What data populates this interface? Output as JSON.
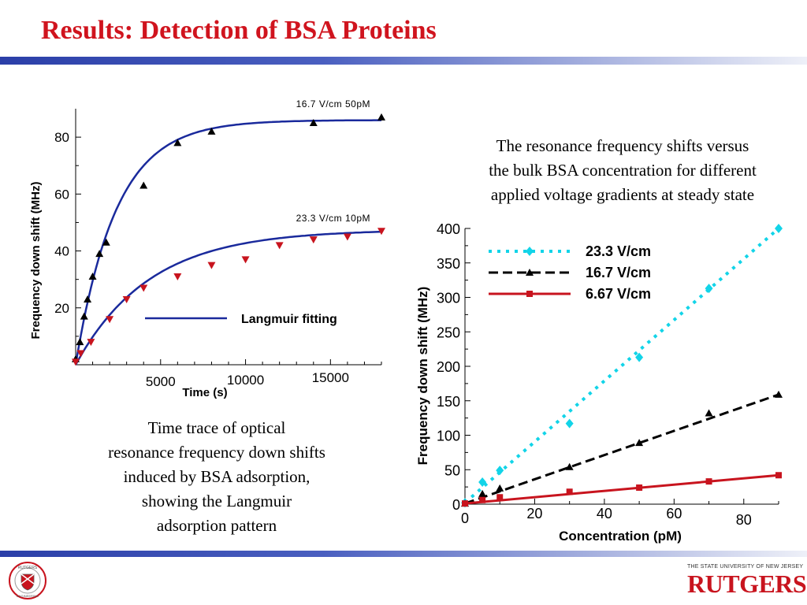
{
  "slide": {
    "title": "Results: Detection of BSA Proteins",
    "caption_left": [
      "Time trace of optical",
      "resonance frequency down shifts",
      "induced by BSA adsorption,",
      "showing the Langmuir",
      "adsorption pattern"
    ],
    "caption_right": [
      "The resonance frequency shifts versus",
      "the bulk BSA concentration for different",
      "applied voltage gradients at steady state"
    ],
    "logo_right_top": "THE STATE UNIVERSITY OF NEW JERSEY",
    "logo_right_name": "RUTGERS",
    "logo_left_top": "RUTGERS",
    "logo_left_bottom": "ENGINEERING",
    "colors": {
      "title": "#d0141e",
      "bar": "#2b3fa8"
    }
  },
  "chart_data": [
    {
      "type": "scatter",
      "title": "",
      "xlabel": "Time (s)",
      "ylabel": "Frequency down shift (MHz)",
      "xlim": [
        0,
        18000
      ],
      "ylim": [
        0,
        90
      ],
      "x_ticks": [
        5000,
        10000,
        15000
      ],
      "y_ticks": [
        20,
        40,
        60,
        80
      ],
      "series": [
        {
          "name": "16.7 V/cm 50pM",
          "color": "#000000",
          "marker": "triangle-up",
          "points": [
            [
              0,
              2
            ],
            [
              250,
              8
            ],
            [
              500,
              17
            ],
            [
              700,
              23
            ],
            [
              1000,
              31
            ],
            [
              1400,
              39
            ],
            [
              1800,
              43
            ],
            [
              4000,
              63
            ],
            [
              6000,
              78
            ],
            [
              8000,
              82
            ],
            [
              14000,
              85
            ],
            [
              18000,
              87
            ]
          ]
        },
        {
          "name": "23.3 V/cm 10pM",
          "color": "#c8141e",
          "marker": "triangle-down",
          "points": [
            [
              0,
              1
            ],
            [
              300,
              4
            ],
            [
              900,
              8
            ],
            [
              2000,
              16
            ],
            [
              3000,
              23
            ],
            [
              4000,
              27
            ],
            [
              6000,
              31
            ],
            [
              8000,
              35
            ],
            [
              10000,
              37
            ],
            [
              12000,
              42
            ],
            [
              14000,
              44
            ],
            [
              16000,
              45
            ],
            [
              18000,
              47
            ]
          ]
        }
      ],
      "fit": {
        "name": "Langmuir fitting",
        "color": "#1a2a9c",
        "curves": [
          {
            "ymax": 86,
            "k": 0.00042
          },
          {
            "ymax": 47.5,
            "k": 0.00023
          }
        ]
      }
    },
    {
      "type": "line",
      "title": "",
      "xlabel": "Concentration (pM)",
      "ylabel": "Frequency down shift (MHz)",
      "xlim": [
        0,
        90
      ],
      "ylim": [
        0,
        400
      ],
      "x_ticks": [
        0,
        20,
        40,
        60,
        80
      ],
      "y_ticks": [
        0,
        50,
        100,
        150,
        200,
        250,
        300,
        350,
        400
      ],
      "legend": "top-left",
      "series": [
        {
          "name": "23.3 V/cm",
          "color": "#12d4e8",
          "marker": "diamond",
          "dash": "dotted",
          "points": [
            [
              0,
              2
            ],
            [
              5,
              32
            ],
            [
              10,
              49
            ],
            [
              30,
              117
            ],
            [
              50,
              213
            ],
            [
              70,
              313
            ],
            [
              90,
              400
            ]
          ],
          "fit": [
            [
              0,
              2
            ],
            [
              90,
              400
            ]
          ]
        },
        {
          "name": "16.7  V/cm",
          "color": "#000000",
          "marker": "triangle-up",
          "dash": "dashed",
          "points": [
            [
              0,
              1
            ],
            [
              5,
              15
            ],
            [
              10,
              23
            ],
            [
              30,
              54
            ],
            [
              50,
              89
            ],
            [
              70,
              132
            ],
            [
              90,
              159
            ]
          ],
          "fit": [
            [
              0,
              1
            ],
            [
              90,
              159
            ]
          ]
        },
        {
          "name": "6.67 V/cm",
          "color": "#c8141e",
          "marker": "square",
          "dash": "solid",
          "points": [
            [
              0,
              1
            ],
            [
              5,
              6
            ],
            [
              10,
              10
            ],
            [
              30,
              18
            ],
            [
              50,
              24
            ],
            [
              70,
              33
            ],
            [
              90,
              42
            ]
          ],
          "fit": [
            [
              0,
              1
            ],
            [
              90,
              42
            ]
          ]
        }
      ]
    }
  ]
}
